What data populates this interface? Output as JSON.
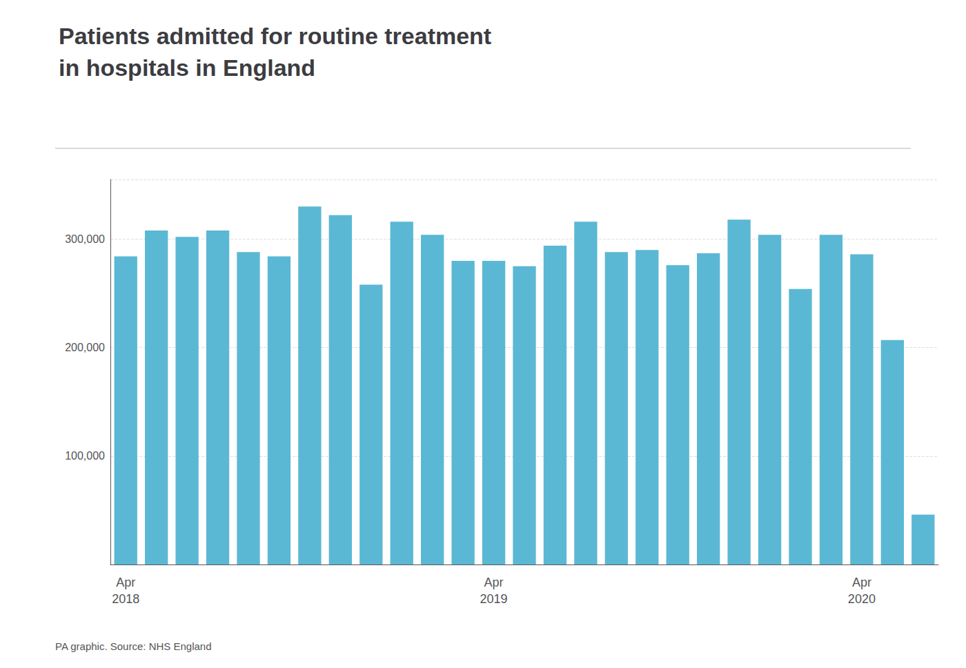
{
  "chart_data": {
    "type": "bar",
    "title": "Patients admitted for routine treatment\nin hospitals in England",
    "annotations": [
      "PA graphic. Source: NHS England"
    ],
    "categories": [
      "Apr\n2018",
      null,
      null,
      null,
      null,
      null,
      null,
      null,
      null,
      null,
      null,
      null,
      "Apr\n2019",
      null,
      null,
      null,
      null,
      null,
      null,
      null,
      null,
      null,
      null,
      null,
      "Apr\n2020",
      null,
      null
    ],
    "values": [
      284000,
      308000,
      302000,
      308000,
      288000,
      284000,
      330000,
      322000,
      258000,
      316000,
      304000,
      280000,
      280000,
      275000,
      294000,
      316000,
      288000,
      290000,
      276000,
      287000,
      318000,
      304000,
      254000,
      304000,
      286000,
      207000,
      46000
    ],
    "color": "#5BB8D4",
    "ylim": [
      0,
      355000
    ],
    "yticks": [
      {
        "value": 100000,
        "label": "100,000"
      },
      {
        "value": 200000,
        "label": "200,000"
      },
      {
        "value": 300000,
        "label": "300,000"
      }
    ],
    "grid": true
  }
}
